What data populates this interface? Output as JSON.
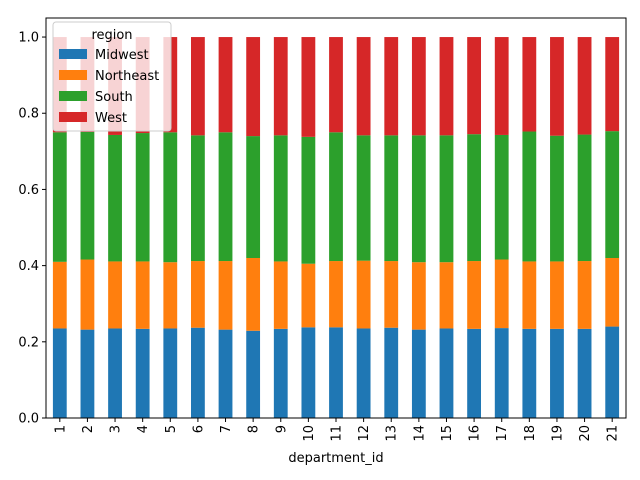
{
  "chart_data": {
    "type": "bar",
    "stacked": true,
    "title": "",
    "xlabel": "department_id",
    "ylabel": "",
    "ylim": [
      0,
      1.05
    ],
    "yticks": [
      "0.0",
      "0.2",
      "0.4",
      "0.6",
      "0.8",
      "1.0"
    ],
    "categories": [
      "1",
      "2",
      "3",
      "4",
      "5",
      "6",
      "7",
      "8",
      "9",
      "10",
      "11",
      "12",
      "13",
      "14",
      "15",
      "16",
      "17",
      "18",
      "19",
      "20",
      "21"
    ],
    "legend": {
      "title": "region",
      "placement": "top-left"
    },
    "series": [
      {
        "name": "Midwest",
        "color": "#1f77b4",
        "values": [
          0.235,
          0.232,
          0.235,
          0.234,
          0.235,
          0.237,
          0.232,
          0.229,
          0.234,
          0.238,
          0.238,
          0.235,
          0.237,
          0.232,
          0.235,
          0.234,
          0.236,
          0.234,
          0.234,
          0.234,
          0.24
        ]
      },
      {
        "name": "Northeast",
        "color": "#ff7f0e",
        "values": [
          0.175,
          0.184,
          0.176,
          0.177,
          0.174,
          0.175,
          0.18,
          0.191,
          0.177,
          0.167,
          0.174,
          0.178,
          0.175,
          0.177,
          0.174,
          0.178,
          0.18,
          0.177,
          0.177,
          0.178,
          0.18
        ]
      },
      {
        "name": "South",
        "color": "#2ca02c",
        "values": [
          0.34,
          0.335,
          0.332,
          0.337,
          0.341,
          0.33,
          0.338,
          0.32,
          0.331,
          0.333,
          0.338,
          0.329,
          0.33,
          0.333,
          0.333,
          0.333,
          0.327,
          0.341,
          0.33,
          0.332,
          0.333
        ]
      },
      {
        "name": "West",
        "color": "#d62728",
        "values": [
          0.25,
          0.249,
          0.257,
          0.252,
          0.25,
          0.258,
          0.25,
          0.26,
          0.258,
          0.262,
          0.25,
          0.258,
          0.258,
          0.258,
          0.258,
          0.255,
          0.257,
          0.248,
          0.259,
          0.256,
          0.247
        ]
      }
    ]
  }
}
